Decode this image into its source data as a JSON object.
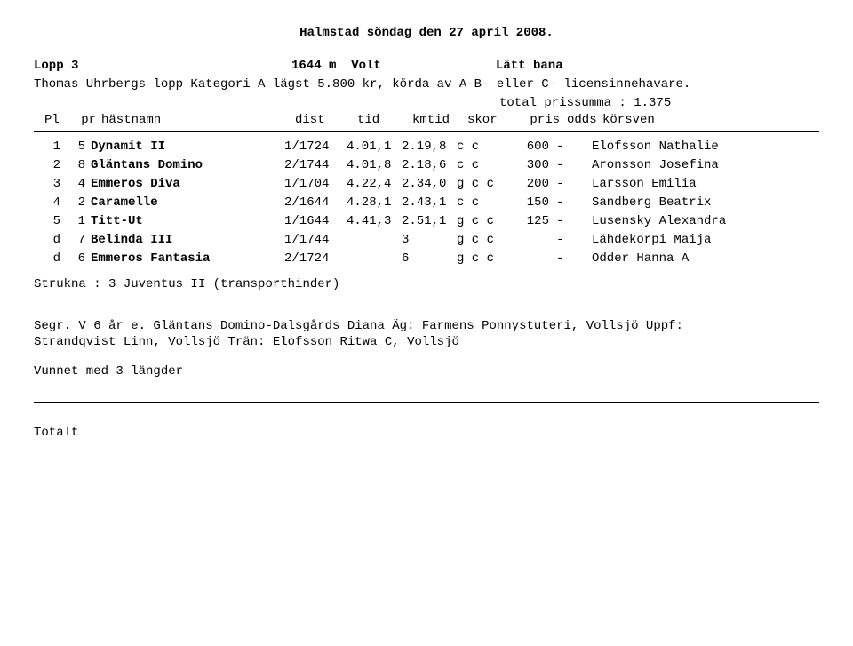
{
  "title": "Halmstad  söndag den 27 april 2008.",
  "race": {
    "lopp_label": "Lopp 3",
    "distance": "1644 m",
    "start": "Volt",
    "track": "Lätt bana",
    "subtitle": "Thomas Uhrbergs lopp Kategori A lägst 5.800 kr, körda av A-B- eller C- licensinnehavare.",
    "total_prissumma": "total prissumma : 1.375"
  },
  "headers": {
    "pl": "Pl",
    "pr": "pr",
    "hastnamn": "hästnamn",
    "dist": "dist",
    "tid": "tid",
    "kmtid": "kmtid",
    "skor": "skor",
    "pris": "pris",
    "odds": "odds",
    "korsven": "körsven"
  },
  "rows": [
    {
      "pl": "1",
      "pr": "5",
      "name": "Dynamit II",
      "dist": "1/1724",
      "tid": "4.01,1",
      "kmtid": "2.19,8",
      "skor": "c c",
      "pris": "600",
      "odds": "-",
      "driver": "Elofsson Nathalie"
    },
    {
      "pl": "2",
      "pr": "8",
      "name": "Gläntans Domino",
      "dist": "2/1744",
      "tid": "4.01,8",
      "kmtid": "2.18,6",
      "skor": "c c",
      "pris": "300",
      "odds": "-",
      "driver": "Aronsson Josefina"
    },
    {
      "pl": "3",
      "pr": "4",
      "name": "Emmeros Diva",
      "dist": "1/1704",
      "tid": "4.22,4",
      "kmtid": "2.34,0",
      "skor": "g c c",
      "pris": "200",
      "odds": "-",
      "driver": "Larsson Emilia"
    },
    {
      "pl": "4",
      "pr": "2",
      "name": "Caramelle",
      "dist": "2/1644",
      "tid": "4.28,1",
      "kmtid": "2.43,1",
      "skor": "c c",
      "pris": "150",
      "odds": "-",
      "driver": "Sandberg Beatrix"
    },
    {
      "pl": "5",
      "pr": "1",
      "name": "Titt-Ut",
      "dist": "1/1644",
      "tid": "4.41,3",
      "kmtid": "2.51,1",
      "skor": "g c c",
      "pris": "125",
      "odds": "-",
      "driver": "Lusensky Alexandra"
    },
    {
      "pl": "d",
      "pr": "7",
      "name": "Belinda III",
      "dist": "1/1744",
      "tid": "",
      "kmtid": "3",
      "skor": "g c c",
      "pris": "",
      "odds": "-",
      "driver": "Lähdekorpi Maija"
    },
    {
      "pl": "d",
      "pr": "6",
      "name": "Emmeros Fantasia",
      "dist": "2/1724",
      "tid": "",
      "kmtid": "6",
      "skor": "g c c",
      "pris": "",
      "odds": "-",
      "driver": "Odder Hanna A"
    }
  ],
  "strukna": "Strukna : 3 Juventus II (transporthinder)",
  "footer": {
    "line1": "Segr. V 6 år e. Gläntans Domino-Dalsgårds Diana Äg: Farmens Ponnystuteri, Vollsjö Uppf:",
    "line2": "Strandqvist Linn, Vollsjö Trän: Elofsson Ritwa C, Vollsjö",
    "line3": "Vunnet med 3 längder"
  },
  "totalt": "Totalt"
}
